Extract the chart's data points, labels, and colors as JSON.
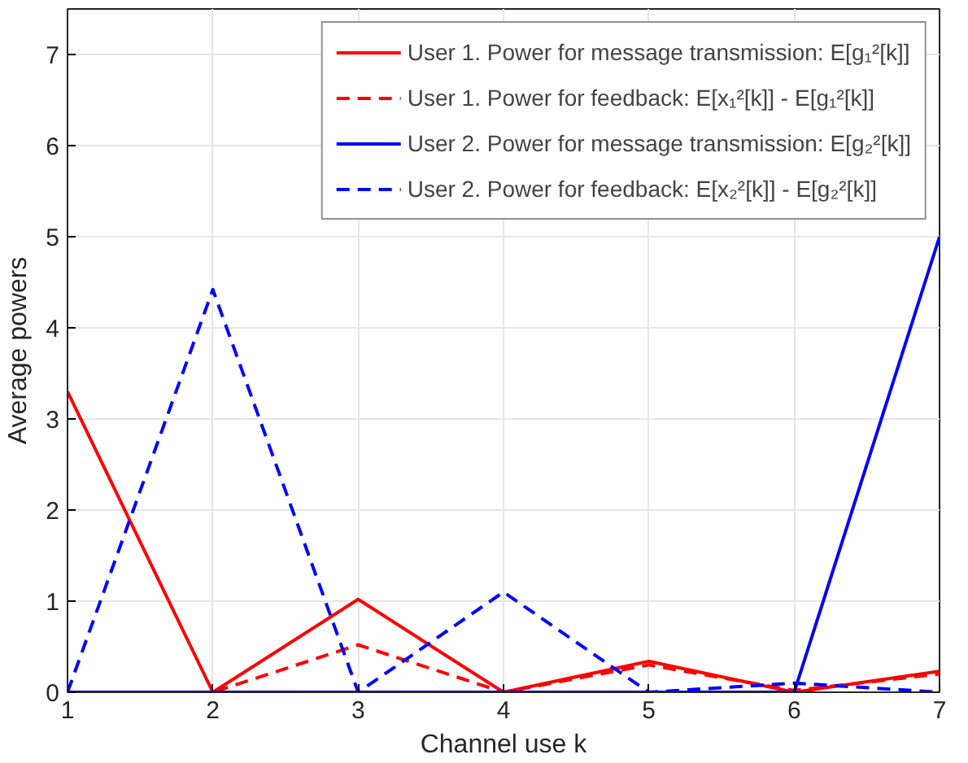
{
  "chart_data": {
    "type": "line",
    "xlabel": "Channel use k",
    "ylabel": "Average powers",
    "x": [
      1,
      2,
      3,
      4,
      5,
      6,
      7
    ],
    "xlim": [
      1,
      7
    ],
    "ylim": [
      0,
      7.5
    ],
    "xticks": [
      1,
      2,
      3,
      4,
      5,
      6,
      7
    ],
    "yticks": [
      0,
      1,
      2,
      3,
      4,
      5,
      6,
      7
    ],
    "grid": true,
    "legend": "top right",
    "series": [
      {
        "name": "User 1. Power for message transmission: E[g₁²[k]]",
        "color": "#ff0000",
        "line_style": "solid",
        "values": [
          3.3,
          0,
          1.02,
          0,
          0.34,
          0,
          0.23
        ]
      },
      {
        "name": "User 1. Power for feedback: E[x₁²[k]] - E[g₁²[k]]",
        "color": "#ff0000",
        "line_style": "dashed",
        "values": [
          0,
          0,
          0.52,
          0,
          0.3,
          0.02,
          0.2
        ]
      },
      {
        "name": "User 2. Power for message transmission: E[g₂²[k]]",
        "color": "#0000ff",
        "line_style": "solid",
        "values": [
          0,
          0,
          0,
          0,
          0,
          0,
          5
        ]
      },
      {
        "name": "User 2. Power for feedback: E[x₂²[k]] - E[g₂²[k]]",
        "color": "#0000ff",
        "line_style": "dashed",
        "values": [
          0,
          4.42,
          0,
          1.1,
          0,
          0.1,
          0
        ]
      }
    ]
  }
}
